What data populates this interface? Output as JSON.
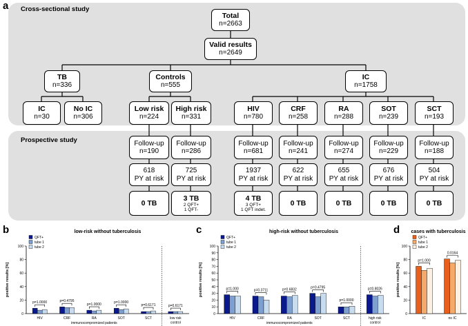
{
  "panel_a": {
    "letter": "a",
    "cross_sectional_label": "Cross-sectional study",
    "prospective_label": "Prospective study",
    "total": {
      "title": "Total",
      "value": "n=2663"
    },
    "valid": {
      "title": "Valid results",
      "value": "n=2649"
    },
    "tb": {
      "title": "TB",
      "value": "n=336"
    },
    "controls": {
      "title": "Controls",
      "value": "n=555"
    },
    "ic": {
      "title": "IC",
      "value": "n=1758"
    },
    "tb_ic": {
      "title": "IC",
      "value": "n=30"
    },
    "tb_noic": {
      "title": "No IC",
      "value": "n=306"
    },
    "lowrisk": {
      "title": "Low risk",
      "value": "n=224"
    },
    "highrisk": {
      "title": "High risk",
      "value": "n=331"
    },
    "hiv": {
      "title": "HIV",
      "value": "n=780"
    },
    "crf": {
      "title": "CRF",
      "value": "n=258"
    },
    "ra": {
      "title": "RA",
      "value": "n=288"
    },
    "sot": {
      "title": "SOT",
      "value": "n=239"
    },
    "sct": {
      "title": "SCT",
      "value": "n=193"
    },
    "followup_label": "Follow-up",
    "py_label": "PY at risk",
    "followup": [
      "n=190",
      "n=286",
      "n=681",
      "n=241",
      "n=274",
      "n=229",
      "n=188"
    ],
    "py": [
      "618",
      "725",
      "1937",
      "622",
      "655",
      "676",
      "504"
    ],
    "outcome": [
      {
        "title": "0 TB",
        "sub1": "",
        "sub2": ""
      },
      {
        "title": "3 TB",
        "sub1": "2 QFT+",
        "sub2": "1 QFT-"
      },
      {
        "title": "4 TB",
        "sub1": "3 QFT+",
        "sub2": "1 QFT indet."
      },
      {
        "title": "0 TB",
        "sub1": "",
        "sub2": ""
      },
      {
        "title": "0 TB",
        "sub1": "",
        "sub2": ""
      },
      {
        "title": "0 TB",
        "sub1": "",
        "sub2": ""
      },
      {
        "title": "0 TB",
        "sub1": "",
        "sub2": ""
      }
    ]
  },
  "panel_b": {
    "letter": "b"
  },
  "panel_c": {
    "letter": "c"
  },
  "panel_d": {
    "letter": "d"
  },
  "chart_data": [
    {
      "type": "bar",
      "title": "low-risk without tuberculosis",
      "ylabel": "positive results [%]",
      "xlabel": "immunocompromized patients",
      "ylim": [
        0,
        100
      ],
      "yticks": [
        0,
        20,
        40,
        60,
        80,
        100
      ],
      "categories": [
        "HIV",
        "CRF",
        "RA",
        "SOT",
        "SCT",
        "low risk control"
      ],
      "category_lines": [
        [
          "HIV"
        ],
        [
          "CRF"
        ],
        [
          "RA"
        ],
        [
          "SOT"
        ],
        [
          "SCT"
        ],
        [
          "low risk",
          "control"
        ]
      ],
      "series": [
        {
          "name": "QFT+",
          "color": "#0a1a8c",
          "values": [
            8,
            10,
            5,
            8,
            3,
            3
          ]
        },
        {
          "name": "tube 1",
          "color": "#7da0d0",
          "values": [
            5,
            9,
            4,
            6,
            3,
            3
          ]
        },
        {
          "name": "tube 2",
          "color": "#c8dcf0",
          "values": [
            6,
            9,
            5,
            7,
            4,
            3
          ]
        }
      ],
      "p_values": [
        "p=1.0000",
        "p=0.4795",
        "p=1.0000",
        "p=1.0000",
        "p=0.6171",
        "p=0.6171"
      ],
      "legend": "top-left",
      "separator_after": 5
    },
    {
      "type": "bar",
      "title": "high-risk without tuberculosis",
      "ylabel": "positive results [%]",
      "xlabel": "immunocompromized patients",
      "ylim": [
        0,
        100
      ],
      "yticks": [
        0,
        10,
        20,
        30,
        40,
        50,
        60,
        70,
        80,
        90,
        100
      ],
      "categories": [
        "HIV",
        "CRF",
        "RA",
        "SOT",
        "SCT",
        "high risk control"
      ],
      "category_lines": [
        [
          "HIV"
        ],
        [
          "CRF"
        ],
        [
          "RA"
        ],
        [
          "SOT"
        ],
        [
          "SCT"
        ],
        [
          "high risk",
          "control"
        ]
      ],
      "series": [
        {
          "name": "QFT+",
          "color": "#0a1a8c",
          "values": [
            28,
            26,
            26,
            30,
            10,
            28
          ]
        },
        {
          "name": "tube 1",
          "color": "#7da0d0",
          "values": [
            26,
            25,
            25,
            25,
            10,
            26
          ]
        },
        {
          "name": "tube 2",
          "color": "#c8dcf0",
          "values": [
            26,
            20,
            27,
            30,
            11,
            27
          ]
        }
      ],
      "p_values": [
        "p=1.000",
        "p=0.3711",
        "p=0.6832",
        "p=0.4795",
        "p=1.0000",
        "p=0.8026"
      ],
      "legend": "top-left",
      "separator_after": 5
    },
    {
      "type": "bar",
      "title": "cases with tuberculosis",
      "ylabel": "positive results [%]",
      "ylim": [
        0,
        100
      ],
      "yticks": [
        0,
        20,
        40,
        60,
        80,
        100
      ],
      "categories": [
        "IC",
        "no IC"
      ],
      "category_lines": [
        [
          "IC"
        ],
        [
          "no IC"
        ]
      ],
      "series": [
        {
          "name": "QFT+",
          "color": "#e8601c",
          "values": [
            70,
            81
          ]
        },
        {
          "name": "tube 1",
          "color": "#f5a96b",
          "values": [
            64,
            75
          ]
        },
        {
          "name": "tube 2",
          "color": "#fdf1e3",
          "values": [
            67,
            79
          ]
        }
      ],
      "p_values": [
        "p=1.000",
        "0.0164"
      ],
      "legend": "top-left"
    }
  ]
}
